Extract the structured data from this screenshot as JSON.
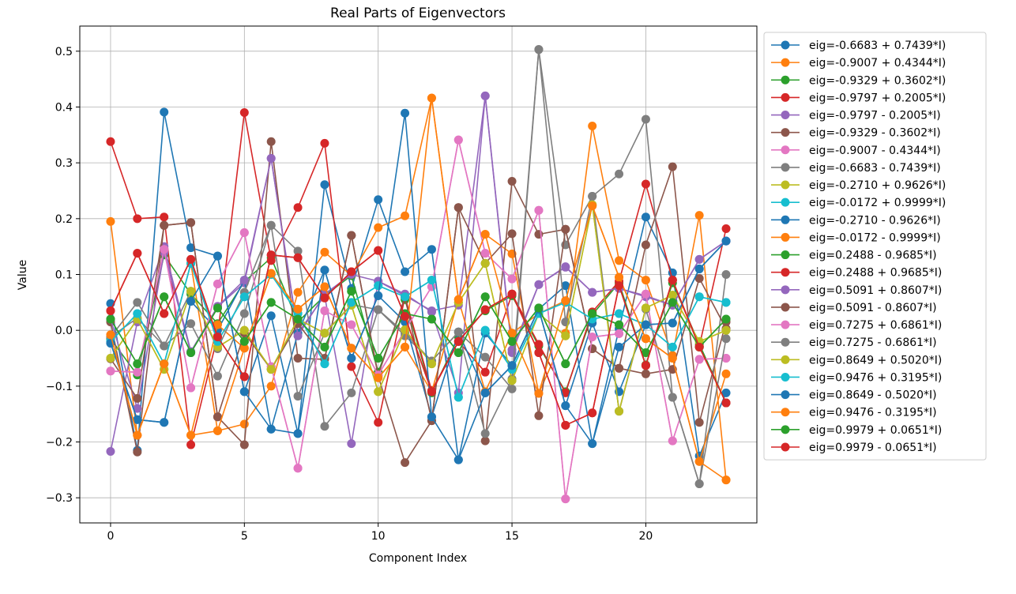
{
  "chart_data": {
    "type": "line",
    "title": "Real Parts of Eigenvectors",
    "xlabel": "Component Index",
    "ylabel": "Value",
    "xlim": [
      -1.15,
      24.15
    ],
    "ylim": [
      -0.345,
      0.545
    ],
    "xticks": [
      0,
      5,
      10,
      15,
      20
    ],
    "xtick_labels": [
      "0",
      "5",
      "10",
      "15",
      "20"
    ],
    "yticks": [
      -0.3,
      -0.2,
      -0.1,
      0.0,
      0.1,
      0.2,
      0.3,
      0.4,
      0.5
    ],
    "ytick_labels": [
      "−0.3",
      "−0.2",
      "−0.1",
      "0.0",
      "0.1",
      "0.2",
      "0.3",
      "0.4",
      "0.5"
    ],
    "grid": true,
    "legend_position": "outside-right",
    "x": [
      0,
      1,
      2,
      3,
      4,
      5,
      6,
      7,
      8,
      9,
      10,
      11,
      12,
      13,
      14,
      15,
      16,
      17,
      18,
      19,
      20,
      21,
      22,
      23
    ],
    "series": [
      {
        "name": "eig=-0.6683 + 0.7439*I)",
        "color": "#1f77b4",
        "values": [
          0.048,
          -0.215,
          0.391,
          0.148,
          0.133,
          -0.11,
          0.026,
          -0.185,
          0.261,
          0.075,
          0.234,
          0.105,
          0.145,
          -0.232,
          -0.005,
          -0.063,
          0.038,
          0.08,
          -0.203,
          0.003,
          0.203,
          0.103,
          -0.225,
          -0.112
        ]
      },
      {
        "name": "eig=-0.9007 + 0.4344*I)",
        "color": "#ff7f0e",
        "values": [
          0.195,
          -0.188,
          -0.06,
          0.12,
          -0.18,
          -0.168,
          -0.1,
          0.068,
          0.14,
          0.098,
          0.184,
          0.205,
          0.416,
          0.055,
          0.172,
          0.137,
          -0.113,
          -0.005,
          0.366,
          0.125,
          0.09,
          -0.045,
          0.206,
          -0.268
        ]
      },
      {
        "name": "eig=-0.9329 + 0.3602*I)",
        "color": "#2ca02c",
        "values": [
          -0.015,
          -0.08,
          0.135,
          0.065,
          0.012,
          0.087,
          0.13,
          0.015,
          0.062,
          0.098,
          -0.075,
          0.055,
          -0.112,
          -0.012,
          0.035,
          0.062,
          -0.028,
          -0.11,
          0.028,
          0.085,
          -0.062,
          0.085,
          -0.025,
          -0.13
        ]
      },
      {
        "name": "eig=-0.9797 + 0.2005*I)",
        "color": "#d62728",
        "values": [
          0.338,
          0.2,
          0.203,
          -0.205,
          -0.01,
          0.39,
          0.125,
          0.22,
          0.335,
          -0.065,
          -0.165,
          0.06,
          -0.108,
          -0.02,
          -0.075,
          0.065,
          -0.025,
          -0.112,
          0.033,
          0.088,
          0.262,
          0.09,
          -0.028,
          0.182
        ]
      },
      {
        "name": "eig=-0.9797 - 0.2005*I)",
        "color": "#9467bd",
        "values": [
          -0.217,
          0.015,
          0.15,
          -0.038,
          0.042,
          0.085,
          0.308,
          -0.005,
          0.062,
          -0.203,
          0.088,
          0.065,
          0.033,
          -0.112,
          0.42,
          -0.035,
          0.082,
          0.113,
          0.068,
          0.075,
          0.062,
          0.045,
          0.127,
          0.16
        ]
      },
      {
        "name": "eig=-0.9329 - 0.3602*I)",
        "color": "#8c564b",
        "values": [
          0.015,
          -0.218,
          0.188,
          0.193,
          -0.155,
          -0.205,
          0.338,
          -0.05,
          -0.052,
          0.17,
          -0.082,
          -0.237,
          -0.162,
          0.22,
          -0.198,
          0.267,
          0.172,
          0.181,
          -0.033,
          -0.068,
          0.153,
          0.293,
          -0.165,
          0.015
        ]
      },
      {
        "name": "eig=-0.9007 - 0.4344*I)",
        "color": "#e377c2",
        "values": [
          -0.073,
          -0.075,
          0.145,
          -0.103,
          0.083,
          0.175,
          -0.065,
          -0.247,
          0.035,
          0.01,
          -0.08,
          0.0,
          0.078,
          0.341,
          0.138,
          0.092,
          0.215,
          -0.302,
          -0.012,
          -0.006,
          0.065,
          -0.198,
          -0.052,
          -0.05
        ]
      },
      {
        "name": "eig=-0.6683 - 0.7439*I)",
        "color": "#7f7f7f",
        "values": [
          -0.012,
          0.05,
          -0.028,
          0.012,
          -0.082,
          0.03,
          0.188,
          0.142,
          -0.172,
          -0.112,
          0.037,
          -0.01,
          -0.055,
          -0.003,
          -0.048,
          -0.105,
          0.503,
          0.153,
          0.24,
          0.28,
          0.378,
          -0.12,
          -0.275,
          0.1
        ]
      },
      {
        "name": "eig=-0.2710 + 0.9626*I)",
        "color": "#bcbd22",
        "values": [
          -0.05,
          0.02,
          -0.07,
          0.07,
          -0.03,
          0.0,
          -0.07,
          0.02,
          -0.005,
          0.045,
          -0.11,
          0.001,
          -0.06,
          0.05,
          0.12,
          -0.09,
          0.03,
          -0.01,
          0.225,
          -0.145,
          0.04,
          0.063,
          -0.02,
          0.0
        ]
      },
      {
        "name": "eig=-0.0172 + 0.9999*I)",
        "color": "#17becf",
        "values": [
          -0.02,
          0.03,
          -0.06,
          0.12,
          -0.02,
          0.06,
          0.1,
          0.03,
          -0.06,
          0.05,
          0.08,
          0.06,
          0.09,
          -0.12,
          0.0,
          -0.07,
          0.03,
          0.05,
          0.02,
          0.03,
          0.01,
          -0.03,
          0.06,
          0.05
        ]
      },
      {
        "name": "eig=-0.2710 - 0.9626*I)",
        "color": "#1f77b4",
        "values": [
          -0.023,
          -0.16,
          -0.165,
          0.052,
          0.0,
          0.09,
          -0.177,
          -0.005,
          0.108,
          -0.05,
          0.062,
          0.015,
          -0.155,
          -0.003,
          -0.112,
          -0.063,
          0.038,
          -0.135,
          0.013,
          -0.11,
          0.01,
          0.013,
          0.11,
          0.16
        ]
      },
      {
        "name": "eig=-0.0172 - 0.9999*I)",
        "color": "#ff7f0e",
        "values": [
          -0.008,
          -0.188,
          -0.06,
          -0.188,
          0.01,
          -0.032,
          0.102,
          0.038,
          0.078,
          -0.032,
          -0.085,
          -0.03,
          -0.11,
          0.055,
          -0.11,
          -0.005,
          0.03,
          0.053,
          0.223,
          0.095,
          -0.015,
          -0.05,
          -0.235,
          -0.078
        ]
      },
      {
        "name": "eig=0.2488 - 0.9685*I)",
        "color": "#2ca02c",
        "values": [
          0.02,
          -0.06,
          0.06,
          -0.04,
          0.04,
          -0.02,
          0.05,
          0.02,
          -0.03,
          0.07,
          -0.05,
          0.03,
          0.02,
          -0.04,
          0.06,
          -0.02,
          0.04,
          -0.06,
          0.03,
          0.01,
          -0.04,
          0.05,
          -0.03,
          0.02
        ]
      },
      {
        "name": "eig=0.2488 + 0.9685*I)",
        "color": "#d62728",
        "values": [
          0.035,
          0.138,
          0.03,
          0.127,
          -0.012,
          -0.083,
          0.135,
          0.13,
          0.058,
          0.105,
          0.143,
          0.025,
          -0.11,
          -0.02,
          0.037,
          0.065,
          -0.04,
          -0.17,
          -0.148,
          0.08,
          -0.063,
          0.09,
          -0.03,
          -0.13
        ]
      },
      {
        "name": "eig=0.5091 + 0.8607*I)",
        "color": "#9467bd",
        "values": [
          0.02,
          -0.14,
          0.14,
          -0.04,
          0.043,
          0.09,
          0.308,
          -0.01,
          0.065,
          0.1,
          0.088,
          0.062,
          0.035,
          0.045,
          0.42,
          -0.04,
          0.082,
          0.114,
          0.068,
          0.075,
          0.06,
          0.045,
          0.127,
          0.16
        ]
      },
      {
        "name": "eig=0.5091 - 0.8607*I)",
        "color": "#8c564b",
        "values": [
          -0.051,
          -0.122,
          0.188,
          0.193,
          -0.155,
          -0.005,
          -0.07,
          0.012,
          -0.05,
          0.17,
          -0.08,
          0.06,
          -0.162,
          0.22,
          0.12,
          0.173,
          -0.153,
          0.181,
          -0.033,
          -0.068,
          -0.078,
          -0.07,
          0.093,
          0.003
        ]
      },
      {
        "name": "eig=0.7275 + 0.6861*I)",
        "color": "#e377c2",
        "values": [
          -0.073,
          -0.075,
          0.145,
          -0.103,
          0.083,
          0.175,
          -0.065,
          -0.247,
          0.035,
          0.01,
          -0.08,
          0.0,
          0.078,
          0.341,
          0.138,
          0.092,
          0.215,
          -0.302,
          -0.012,
          -0.006,
          0.065,
          -0.198,
          -0.052,
          -0.05
        ]
      },
      {
        "name": "eig=0.7275 - 0.6861*I)",
        "color": "#7f7f7f",
        "values": [
          -0.012,
          0.022,
          -0.028,
          0.07,
          -0.033,
          0.068,
          0.188,
          -0.118,
          -0.005,
          0.046,
          0.037,
          -0.005,
          -0.055,
          -0.003,
          -0.185,
          -0.087,
          0.503,
          0.015,
          0.24,
          -0.145,
          0.038,
          -0.12,
          -0.275,
          -0.015
        ]
      },
      {
        "name": "eig=0.8649 + 0.5020*I)",
        "color": "#bcbd22",
        "values": [
          -0.05,
          0.02,
          -0.07,
          0.07,
          -0.03,
          0.0,
          -0.07,
          0.02,
          -0.005,
          0.045,
          -0.11,
          0.001,
          -0.06,
          0.05,
          0.12,
          -0.09,
          0.03,
          -0.01,
          0.225,
          -0.145,
          0.04,
          0.063,
          -0.02,
          0.0
        ]
      },
      {
        "name": "eig=0.9476 + 0.3195*I)",
        "color": "#17becf",
        "values": [
          -0.02,
          0.03,
          -0.06,
          0.12,
          -0.02,
          0.06,
          0.1,
          0.03,
          -0.06,
          0.05,
          0.08,
          0.06,
          0.09,
          -0.12,
          0.0,
          -0.07,
          0.03,
          0.05,
          0.02,
          0.03,
          0.01,
          -0.03,
          0.06,
          0.05
        ]
      },
      {
        "name": "eig=0.8649 - 0.5020*I)",
        "color": "#1f77b4",
        "values": [
          -0.023,
          -0.16,
          -0.165,
          0.052,
          0.133,
          -0.11,
          -0.177,
          -0.185,
          0.108,
          -0.05,
          0.062,
          0.389,
          -0.155,
          -0.232,
          -0.112,
          -0.063,
          0.038,
          -0.135,
          -0.203,
          -0.03,
          0.01,
          0.013,
          0.11,
          0.16
        ]
      },
      {
        "name": "eig=0.9476 - 0.3195*I)",
        "color": "#ff7f0e",
        "values": [
          -0.008,
          -0.188,
          -0.06,
          -0.188,
          -0.18,
          -0.032,
          0.102,
          0.038,
          0.078,
          -0.032,
          -0.085,
          -0.03,
          0.416,
          0.055,
          0.172,
          -0.005,
          -0.113,
          0.053,
          0.223,
          0.095,
          -0.015,
          -0.05,
          -0.235,
          -0.268
        ]
      },
      {
        "name": "eig=0.9979 + 0.0651*I)",
        "color": "#2ca02c",
        "values": [
          0.02,
          -0.06,
          0.06,
          -0.04,
          0.04,
          -0.02,
          0.05,
          0.02,
          -0.03,
          0.07,
          -0.05,
          0.03,
          0.02,
          -0.04,
          0.06,
          -0.02,
          0.04,
          -0.06,
          0.03,
          0.01,
          -0.04,
          0.05,
          -0.03,
          0.02
        ]
      },
      {
        "name": "eig=0.9979 - 0.0651*I)",
        "color": "#d62728",
        "values": [
          0.035,
          0.138,
          0.03,
          0.127,
          -0.012,
          -0.083,
          0.135,
          0.13,
          0.058,
          0.105,
          0.143,
          0.025,
          -0.11,
          -0.02,
          0.037,
          0.065,
          -0.04,
          -0.17,
          -0.148,
          0.08,
          -0.063,
          0.09,
          -0.03,
          -0.13
        ]
      }
    ]
  }
}
